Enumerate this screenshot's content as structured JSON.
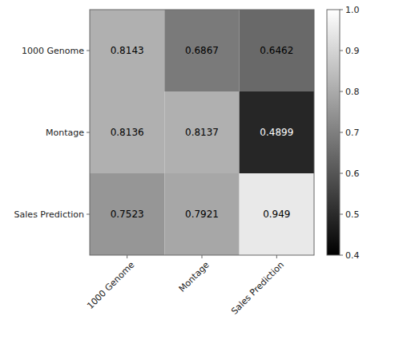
{
  "chart_data": {
    "type": "heatmap",
    "rows": [
      "1000 Genome",
      "Montage",
      "Sales Prediction"
    ],
    "columns": [
      "1000 Genome",
      "Montage",
      "Sales Prediction"
    ],
    "values": [
      [
        0.8143,
        0.6867,
        0.6462
      ],
      [
        0.8136,
        0.8137,
        0.4899
      ],
      [
        0.7523,
        0.7921,
        0.949
      ]
    ],
    "data_labels": true,
    "color": "gray",
    "color_range": [
      0.4,
      1.0
    ],
    "color_ticks": [
      0.4,
      0.5,
      0.6,
      0.7,
      0.8,
      0.9,
      {
        "value": 1.0,
        "label": "1.0"
      }
    ]
  }
}
